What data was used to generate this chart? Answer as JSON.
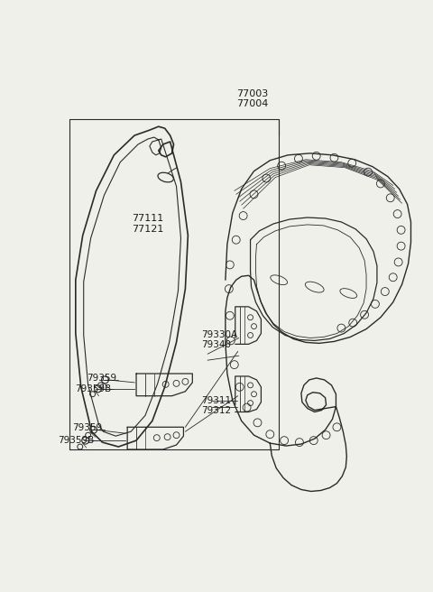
{
  "bg_color": "#f0f0eb",
  "line_color": "#2a2a2a",
  "text_color": "#1a1a1a",
  "figsize": [
    4.8,
    6.56
  ],
  "dpi": 100,
  "labels": {
    "77003_77004": "77003\n77004",
    "77111_77121": "77111\n77121",
    "79330A_79340": "79330A\n79340",
    "79359_top": "79359",
    "79359B_top": "79359B",
    "79311_79312": "79311\n79312",
    "79359_bot": "79359",
    "79359B_bot": "79359B"
  }
}
